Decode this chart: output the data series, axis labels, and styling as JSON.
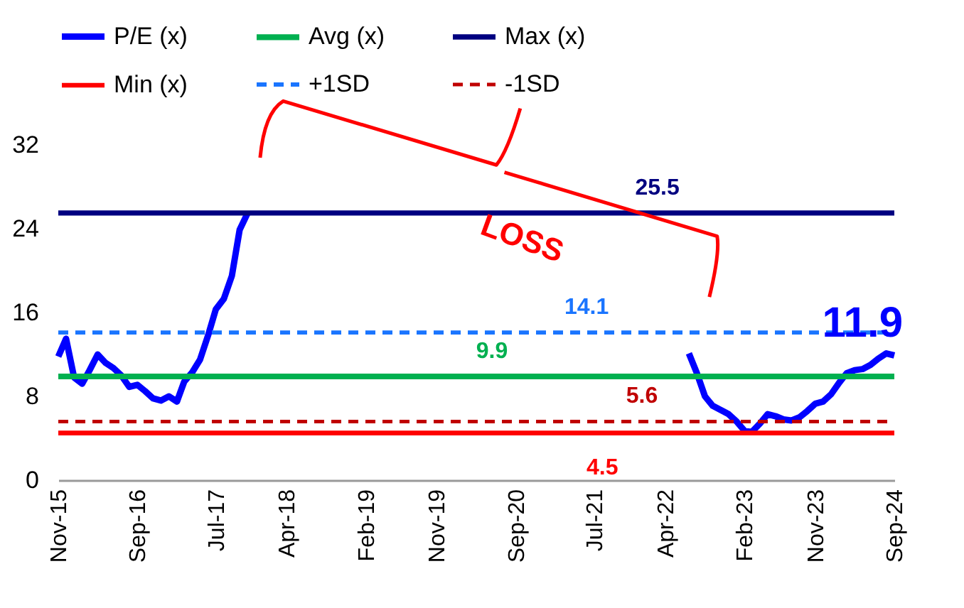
{
  "chart_data": {
    "type": "line",
    "annotations": [
      "LOSS"
    ],
    "xlim": [
      "2015-11",
      "2024-09"
    ],
    "xticks": [
      {
        "value": "2015-11",
        "label": "Nov-15"
      },
      {
        "value": "2016-09",
        "label": "Sep-16"
      },
      {
        "value": "2017-07",
        "label": "Jul-17"
      },
      {
        "value": "2018-04",
        "label": "Apr-18"
      },
      {
        "value": "2019-02",
        "label": "Feb-19"
      },
      {
        "value": "2019-11",
        "label": "Nov-19"
      },
      {
        "value": "2020-09",
        "label": "Sep-20"
      },
      {
        "value": "2021-07",
        "label": "Jul-21"
      },
      {
        "value": "2022-04",
        "label": "Apr-22"
      },
      {
        "value": "2023-02",
        "label": "Feb-23"
      },
      {
        "value": "2023-11",
        "label": "Nov-23"
      },
      {
        "value": "2024-09",
        "label": "Sep-24"
      }
    ],
    "ylim": [
      0,
      32
    ],
    "yticks": [
      0,
      8,
      16,
      24,
      32
    ],
    "grid": false,
    "legend": "top",
    "marker": "none",
    "series": [
      {
        "name": "P/E (x)",
        "color": "#0000ff",
        "line_style": "solid",
        "x": [
          "2015-11",
          "2015-12",
          "2016-01",
          "2016-02",
          "2016-03",
          "2016-04",
          "2016-05",
          "2016-06",
          "2016-07",
          "2016-08",
          "2016-09",
          "2016-10",
          "2016-11",
          "2016-12",
          "2017-01",
          "2017-02",
          "2017-03",
          "2017-04",
          "2017-05",
          "2017-06",
          "2017-07",
          "2017-08",
          "2017-09",
          "2017-10",
          "2017-11",
          "2020-01",
          "2022-07",
          "2022-08",
          "2022-09",
          "2022-10",
          "2022-11",
          "2022-12",
          "2023-01",
          "2023-02",
          "2023-03",
          "2023-04",
          "2023-05",
          "2023-06",
          "2023-07",
          "2023-08",
          "2023-09",
          "2023-10",
          "2023-11",
          "2023-12",
          "2024-01",
          "2024-02",
          "2024-03",
          "2024-04",
          "2024-05",
          "2024-06",
          "2024-07",
          "2024-08",
          "2024-09"
        ],
        "values": [
          11.8,
          13.5,
          9.8,
          9.2,
          10.5,
          12.0,
          11.2,
          10.7,
          10.0,
          8.9,
          9.1,
          8.5,
          7.8,
          7.6,
          8.0,
          7.5,
          9.4,
          10.3,
          11.5,
          13.8,
          16.3,
          17.3,
          19.5,
          23.9,
          25.5,
          null,
          12.1,
          10.2,
          8.0,
          7.1,
          6.7,
          6.3,
          5.6,
          4.7,
          4.6,
          5.4,
          6.3,
          6.1,
          5.8,
          5.7,
          6.0,
          6.6,
          7.3,
          7.5,
          8.2,
          9.3,
          10.2,
          10.5,
          10.6,
          11.0,
          11.6,
          12.1,
          11.9
        ],
        "value_labels": [
          null,
          null,
          null,
          null,
          null,
          null,
          null,
          null,
          null,
          null,
          null,
          null,
          null,
          null,
          null,
          null,
          null,
          null,
          null,
          null,
          null,
          null,
          null,
          null,
          null,
          null,
          null,
          null,
          null,
          null,
          null,
          null,
          null,
          null,
          null,
          null,
          null,
          null,
          null,
          null,
          null,
          null,
          null,
          null,
          null,
          null,
          null,
          null,
          null,
          null,
          null,
          null,
          "11.9"
        ]
      },
      {
        "name": "Avg (x)",
        "color": "#00b050",
        "line_style": "solid",
        "x": [
          "2015-11",
          "2020-06",
          "2024-09"
        ],
        "values": [
          9.9,
          9.9,
          9.9
        ],
        "value_labels": [
          null,
          "9.9",
          null
        ]
      },
      {
        "name": "Max (x)",
        "color": "#000080",
        "line_style": "solid",
        "x": [
          "2015-11",
          "2022-03",
          "2024-09"
        ],
        "values": [
          25.5,
          25.5,
          25.5
        ],
        "value_labels": [
          null,
          "25.5",
          null
        ]
      },
      {
        "name": "Min (x)",
        "color": "#ff0000",
        "line_style": "solid",
        "x": [
          "2015-11",
          "2021-08",
          "2024-09"
        ],
        "values": [
          4.5,
          4.5,
          4.5
        ],
        "value_labels": [
          null,
          "4.5",
          null
        ]
      },
      {
        "name": "+1SD",
        "color": "#1a75ff",
        "line_style": "dashed",
        "x": [
          "2015-11",
          "2021-06",
          "2024-09"
        ],
        "values": [
          14.1,
          14.1,
          14.1
        ],
        "value_labels": [
          null,
          "14.1",
          null
        ]
      },
      {
        "name": "-1SD",
        "color": "#c00000",
        "line_style": "dashed",
        "x": [
          "2015-11",
          "2022-01",
          "2024-09"
        ],
        "values": [
          5.6,
          5.6,
          5.6
        ],
        "value_labels": [
          null,
          "5.6",
          null
        ]
      }
    ]
  }
}
